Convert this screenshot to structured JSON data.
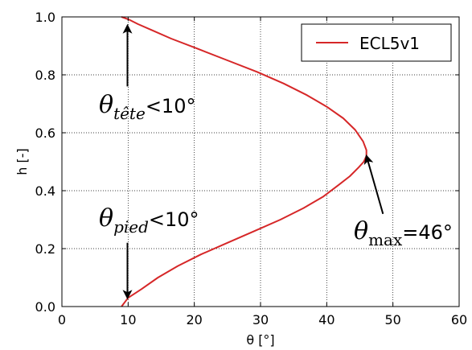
{
  "chart_data": {
    "type": "line",
    "title": "",
    "xlabel": "θ [°]",
    "ylabel": "h [-]",
    "xlim": [
      0,
      60
    ],
    "ylim": [
      0.0,
      1.0
    ],
    "xticks": [
      "0",
      "10",
      "20",
      "30",
      "40",
      "50",
      "60"
    ],
    "yticks": [
      "0.0",
      "0.2",
      "0.4",
      "0.6",
      "0.8",
      "1.0"
    ],
    "grid": true,
    "legend_position": "top-right",
    "series": [
      {
        "name": "ECL5v1",
        "color": "#d62728",
        "x": [
          9.0,
          10.0,
          12.0,
          14.5,
          17.5,
          21.0,
          25.0,
          29.0,
          33.0,
          36.5,
          39.5,
          41.8,
          43.5,
          44.8,
          45.6,
          46.0,
          46.0,
          45.5,
          44.3,
          42.5,
          40.0,
          37.0,
          33.5,
          29.5,
          25.0,
          20.5,
          16.5,
          13.5,
          11.5,
          10.2,
          9.0
        ],
        "y": [
          0.0,
          0.03,
          0.06,
          0.1,
          0.14,
          0.18,
          0.22,
          0.26,
          0.3,
          0.34,
          0.38,
          0.42,
          0.45,
          0.48,
          0.5,
          0.52,
          0.54,
          0.57,
          0.61,
          0.65,
          0.69,
          0.73,
          0.77,
          0.81,
          0.85,
          0.89,
          0.925,
          0.955,
          0.975,
          0.99,
          1.0
        ]
      }
    ],
    "annotations": [
      {
        "symbol": "θ",
        "subscript": "tête",
        "text": "<10°",
        "arrow_to": [
          9.9,
          0.97
        ],
        "arrow_from": [
          9.9,
          0.76
        ]
      },
      {
        "symbol": "θ",
        "subscript": "pied",
        "text": "<10°",
        "arrow_to": [
          9.9,
          0.03
        ],
        "arrow_from": [
          9.9,
          0.22
        ]
      },
      {
        "symbol": "θ",
        "subscript": "max",
        "text": "=46°",
        "arrow_to": [
          46.0,
          0.52
        ],
        "arrow_from": [
          48.5,
          0.32
        ]
      }
    ]
  }
}
